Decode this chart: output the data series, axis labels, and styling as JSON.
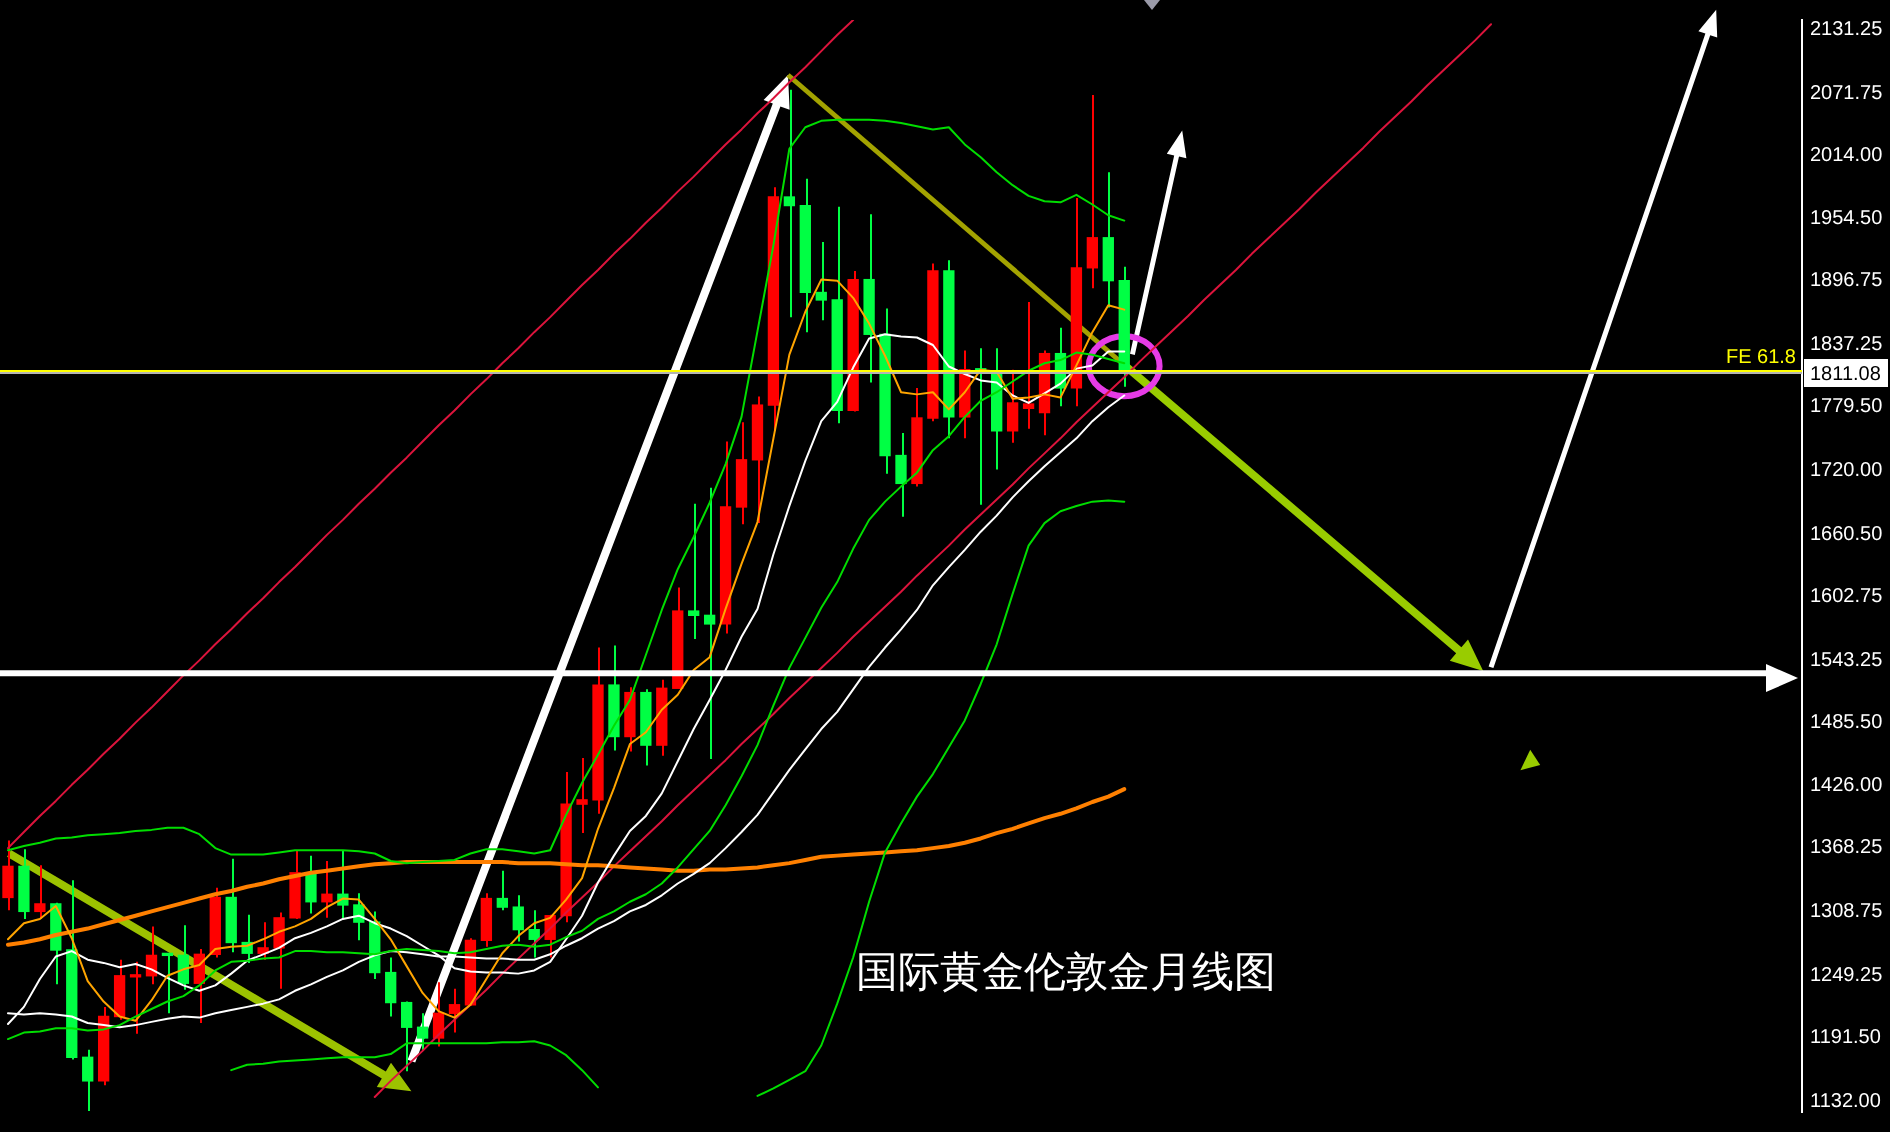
{
  "chart_data": {
    "type": "candlestick",
    "title": "国际黄金伦敦金月线图",
    "categories": [
      null,
      null,
      null,
      null,
      null,
      null,
      null,
      null,
      null,
      null,
      null,
      null,
      null,
      null,
      null,
      null,
      null,
      null,
      null,
      null,
      null,
      null,
      null,
      null,
      null,
      null,
      null,
      null,
      null,
      null,
      null,
      null,
      null,
      null,
      null,
      null,
      null,
      null,
      null,
      null,
      null,
      null,
      null,
      null,
      null,
      null,
      null,
      null,
      null,
      null,
      null,
      null,
      null,
      null,
      null,
      null,
      null,
      null,
      null,
      null,
      null,
      null,
      null,
      null,
      null,
      null,
      null,
      null,
      null,
      null,
      null,
      null,
      null,
      null,
      null,
      null,
      null,
      null,
      null,
      null,
      null,
      null,
      null,
      null,
      null,
      null,
      null,
      null,
      null,
      null,
      null,
      null,
      null,
      null,
      null,
      null,
      null,
      null,
      null,
      null,
      null,
      null,
      null,
      null,
      null,
      null,
      null,
      null,
      null,
      null,
      null,
      null,
      null
    ],
    "ohlc": [
      [
        1322,
        1375,
        1310,
        1351
      ],
      [
        1351,
        1367,
        1302,
        1309
      ],
      [
        1309,
        1352,
        1302,
        1316
      ],
      [
        1316,
        1317,
        1241,
        1273
      ],
      [
        1273,
        1338,
        1171,
        1173
      ],
      [
        1173,
        1180,
        1123,
        1151
      ],
      [
        1151,
        1220,
        1147,
        1211
      ],
      [
        1211,
        1264,
        1208,
        1249
      ],
      [
        1248,
        1262,
        1195,
        1249
      ],
      [
        1249,
        1295,
        1241,
        1268
      ],
      [
        1269,
        1270,
        1214,
        1268
      ],
      [
        1268,
        1296,
        1236,
        1242
      ],
      [
        1242,
        1274,
        1205,
        1269
      ],
      [
        1269,
        1331,
        1266,
        1322
      ],
      [
        1322,
        1358,
        1271,
        1280
      ],
      [
        1280,
        1306,
        1261,
        1270
      ],
      [
        1270,
        1299,
        1264,
        1275
      ],
      [
        1275,
        1308,
        1237,
        1303
      ],
      [
        1303,
        1366,
        1302,
        1345
      ],
      [
        1345,
        1361,
        1307,
        1318
      ],
      [
        1318,
        1356,
        1303,
        1325
      ],
      [
        1325,
        1366,
        1302,
        1315
      ],
      [
        1315,
        1326,
        1282,
        1299
      ],
      [
        1299,
        1309,
        1246,
        1252
      ],
      [
        1252,
        1266,
        1211,
        1224
      ],
      [
        1224,
        1225,
        1160,
        1201
      ],
      [
        1201,
        1214,
        1180,
        1191
      ],
      [
        1191,
        1243,
        1183,
        1214
      ],
      [
        1214,
        1237,
        1196,
        1222
      ],
      [
        1222,
        1284,
        1221,
        1282
      ],
      [
        1282,
        1326,
        1276,
        1321
      ],
      [
        1321,
        1347,
        1310,
        1313
      ],
      [
        1313,
        1324,
        1281,
        1292
      ],
      [
        1292,
        1310,
        1266,
        1283
      ],
      [
        1283,
        1306,
        1266,
        1305
      ],
      [
        1305,
        1439,
        1299,
        1409
      ],
      [
        1409,
        1452,
        1382,
        1413
      ],
      [
        1413,
        1555,
        1400,
        1520
      ],
      [
        1520,
        1557,
        1459,
        1472
      ],
      [
        1472,
        1518,
        1458,
        1513
      ],
      [
        1513,
        1516,
        1445,
        1464
      ],
      [
        1464,
        1525,
        1454,
        1517
      ],
      [
        1517,
        1611,
        1517,
        1589
      ],
      [
        1589,
        1689,
        1563,
        1585
      ],
      [
        1585,
        1704,
        1451,
        1577
      ],
      [
        1577,
        1747,
        1568,
        1686
      ],
      [
        1686,
        1765,
        1670,
        1730
      ],
      [
        1730,
        1789,
        1671,
        1781
      ],
      [
        1781,
        1984,
        1757,
        1975
      ],
      [
        1975,
        2075,
        1863,
        1967
      ],
      [
        1967,
        1992,
        1849,
        1886
      ],
      [
        1886,
        1933,
        1860,
        1879
      ],
      [
        1879,
        1966,
        1764,
        1776
      ],
      [
        1776,
        1906,
        1775,
        1898
      ],
      [
        1898,
        1959,
        1802,
        1847
      ],
      [
        1847,
        1871,
        1717,
        1734
      ],
      [
        1734,
        1755,
        1677,
        1708
      ],
      [
        1708,
        1797,
        1705,
        1769
      ],
      [
        1769,
        1913,
        1766,
        1906
      ],
      [
        1906,
        1916,
        1750,
        1770
      ],
      [
        1770,
        1832,
        1750,
        1814
      ],
      [
        1814,
        1834,
        1688,
        1813
      ],
      [
        1813,
        1834,
        1721,
        1757
      ],
      [
        1757,
        1814,
        1746,
        1783
      ],
      [
        1778,
        1877,
        1759,
        1782
      ],
      [
        1774,
        1832,
        1753,
        1829
      ],
      [
        1829,
        1853,
        1780,
        1797
      ],
      [
        1797,
        1974,
        1780,
        1909
      ],
      [
        1909,
        2070,
        1890,
        1937
      ],
      [
        1937,
        1998,
        1872,
        1897
      ],
      [
        1897,
        1910,
        1798,
        1811
      ],
      null,
      null,
      null,
      null,
      null,
      null,
      null,
      null,
      null,
      null,
      null,
      null,
      null,
      null,
      null,
      null,
      null,
      null,
      null,
      null,
      null,
      null,
      null,
      null,
      null,
      null,
      null,
      null,
      null,
      null,
      null,
      null,
      null,
      null,
      null,
      null,
      null,
      null,
      null,
      null,
      null,
      null
    ],
    "colors": [
      "#ff0000",
      "#00ff44",
      "#ff0000",
      "#00ff44",
      "#00ff44",
      "#00ff44",
      "#ff0000",
      "#ff0000",
      "#ff0000",
      "#ff0000",
      "#00ff44",
      "#00ff44",
      "#ff0000",
      "#ff0000",
      "#00ff44",
      "#00ff44",
      "#ff0000",
      "#ff0000",
      "#ff0000",
      "#00ff44",
      "#ff0000",
      "#00ff44",
      "#00ff44",
      "#00ff44",
      "#00ff44",
      "#00ff44",
      "#00ff44",
      "#ff0000",
      "#ff0000",
      "#ff0000",
      "#ff0000",
      "#00ff44",
      "#00ff44",
      "#00ff44",
      "#ff0000",
      "#ff0000",
      "#ff0000",
      "#ff0000",
      "#00ff44",
      "#ff0000",
      "#00ff44",
      "#ff0000",
      "#ff0000",
      "#00ff44",
      "#00ff44",
      "#ff0000",
      "#ff0000",
      "#ff0000",
      "#ff0000",
      "#00ff44",
      "#00ff44",
      "#00ff44",
      "#00ff44",
      "#ff0000",
      "#00ff44",
      "#00ff44",
      "#00ff44",
      "#ff0000",
      "#ff0000",
      "#00ff44",
      "#ff0000",
      "#00ff44",
      "#00ff44",
      "#ff0000",
      "#ff0000",
      "#ff0000",
      "#00ff44",
      "#ff0000",
      "#ff0000",
      "#00ff44",
      "#00ff44",
      null,
      null,
      null,
      null,
      null,
      null,
      null,
      null,
      null,
      null,
      null,
      null,
      null,
      null,
      null,
      null,
      null,
      null,
      null,
      null,
      null,
      null,
      null,
      null,
      null,
      null,
      null,
      null,
      null,
      null,
      null,
      null,
      null,
      null,
      null,
      null,
      null,
      null,
      null,
      null,
      null,
      null
    ],
    "series": [
      {
        "type": "line",
        "color": "#00dd00",
        "values": [
          1366,
          1370,
          1373,
          1377,
          1378,
          1380,
          1381,
          1382,
          1384,
          1385,
          1387,
          1387,
          1381,
          1368,
          1362,
          1362,
          1362,
          1364,
          1366,
          1366,
          1366,
          1366,
          1365,
          1363,
          1356,
          1354,
          1355,
          1356,
          1357,
          1363,
          1367,
          1367,
          1365,
          1363,
          1366,
          1399,
          1429,
          1455,
          1482,
          1506,
          1548,
          1590,
          1628,
          1658,
          1690,
          1726,
          1770,
          1850,
          1930,
          2020,
          2040,
          2046,
          2047,
          2047,
          2047,
          2046,
          2044,
          2041,
          2038,
          2040,
          2024,
          2012,
          1998,
          1986,
          1976,
          1971,
          1970,
          1977,
          1968,
          1958,
          1953,
          null,
          null,
          null,
          null,
          null,
          null,
          null,
          null,
          null,
          null,
          null,
          null,
          null,
          null,
          null,
          null,
          null,
          null,
          null,
          null,
          null,
          null,
          null,
          null,
          null,
          null,
          null,
          null,
          null,
          null,
          null,
          null,
          null,
          null,
          null,
          null,
          null,
          null,
          null,
          null,
          null,
          null
        ]
      },
      {
        "type": "line",
        "color": "#00dd00",
        "values": [
          1190,
          1196,
          1197,
          1200,
          1200,
          1198,
          1199,
          1203,
          1211,
          1218,
          1225,
          1230,
          1240,
          1254,
          1262,
          1263,
          1265,
          1266,
          1272,
          1272,
          1271,
          1271,
          1270,
          1269,
          1272,
          1274,
          1273,
          1272,
          1270,
          1271,
          1274,
          1277,
          1278,
          1276,
          1278,
          1285,
          1291,
          1302,
          1309,
          1318,
          1325,
          1335,
          1350,
          1367,
          1384,
          1408,
          1435,
          1464,
          1501,
          1536,
          1564,
          1592,
          1616,
          1647,
          1674,
          1691,
          1705,
          1718,
          1739,
          1752,
          1770,
          1785,
          1793,
          1803,
          1813,
          1820,
          1823,
          1830,
          1828,
          1824,
          1820,
          null,
          null,
          null,
          null,
          null,
          null,
          null,
          null,
          null,
          null,
          null,
          null,
          null,
          null,
          null,
          null,
          null,
          null,
          null,
          null,
          null,
          null,
          null,
          null,
          null,
          null,
          null,
          null,
          null,
          null,
          null,
          null,
          null,
          null,
          null,
          null,
          null,
          null,
          null,
          null,
          null,
          null
        ]
      },
      {
        "type": "line",
        "color": "#00dd00",
        "values": [
          null,
          null,
          null,
          null,
          null,
          null,
          null,
          null,
          null,
          null,
          null,
          null,
          null,
          null,
          1161,
          1166,
          1167,
          1169,
          1170,
          1171,
          1172,
          1173,
          1173,
          1173,
          1176,
          1186,
          1186,
          1186,
          1186,
          1186,
          1186,
          1187,
          1187,
          1188,
          1184,
          1175,
          1161,
          1145,
          null,
          null,
          null,
          null,
          null,
          null,
          null,
          null,
          null,
          1137,
          1144,
          1152,
          1160,
          1184,
          1223,
          1266,
          1318,
          1364,
          1391,
          1416,
          1437,
          1462,
          1487,
          1521,
          1558,
          1605,
          1650,
          1671,
          1682,
          1687,
          1691,
          1692,
          1691,
          null,
          null,
          null,
          null,
          null,
          null,
          null,
          null,
          null,
          null,
          null,
          null,
          null,
          null,
          null,
          null,
          null,
          null,
          null,
          null,
          null,
          null,
          null,
          null,
          null,
          null,
          null,
          null,
          null,
          null,
          null,
          null,
          null,
          null,
          null,
          null,
          null,
          null,
          null,
          null,
          null,
          null
        ]
      },
      {
        "type": "line",
        "color": "#ffa500",
        "values": [
          1283,
          1298,
          1302,
          1314,
          1284,
          1244,
          1225,
          1211,
          1207,
          1226,
          1249,
          1255,
          1259,
          1274,
          1276,
          1277,
          1283,
          1290,
          1295,
          1302,
          1313,
          1321,
          1320,
          1302,
          1283,
          1258,
          1233,
          1216,
          1210,
          1222,
          1246,
          1270,
          1286,
          1298,
          1303,
          1320,
          1340,
          1386,
          1424,
          1465,
          1476,
          1497,
          1511,
          1534,
          1546,
          1591,
          1633,
          1672,
          1750,
          1828,
          1868,
          1898,
          1897,
          1881,
          1857,
          1827,
          1793,
          1791,
          1793,
          1777,
          1793,
          1814,
          1812,
          1787,
          1788,
          1791,
          1788,
          1818,
          1849,
          1874,
          1870,
          null,
          null,
          null,
          null,
          null,
          null,
          null,
          null,
          null,
          null,
          null,
          null,
          null,
          null,
          null,
          null,
          null,
          null,
          null,
          null,
          null,
          null,
          null,
          null,
          null,
          null,
          null,
          null,
          null,
          null,
          null,
          null,
          null,
          null,
          null,
          null,
          null,
          null,
          null,
          null,
          null,
          null
        ]
      },
      {
        "type": "line",
        "color": "#ffffff",
        "values": [
          1204,
          1220,
          1246,
          1267,
          1272,
          1264,
          1261,
          1257,
          1260,
          1255,
          1247,
          1240,
          1235,
          1240,
          1251,
          1263,
          1269,
          1275,
          1284,
          1289,
          1295,
          1302,
          1305,
          1298,
          1293,
          1286,
          1277,
          1268,
          1256,
          1253,
          1252,
          1252,
          1251,
          1254,
          1262,
          1283,
          1305,
          1336,
          1361,
          1384,
          1398,
          1419,
          1449,
          1479,
          1506,
          1534,
          1565,
          1591,
          1642,
          1687,
          1729,
          1766,
          1784,
          1816,
          1843,
          1847,
          1845,
          1844,
          1837,
          1817,
          1810,
          1804,
          1802,
          1790,
          1783,
          1792,
          1801,
          1815,
          1818,
          1831,
          1831,
          null,
          null,
          null,
          null,
          null,
          null,
          null,
          null,
          null,
          null,
          null,
          null,
          null,
          null,
          null,
          null,
          null,
          null,
          null,
          null,
          null,
          null,
          null,
          null,
          null,
          null,
          null,
          null,
          null,
          null,
          null,
          null,
          null,
          null,
          null,
          null,
          null,
          null,
          null,
          null,
          null,
          null
        ]
      },
      {
        "type": "line",
        "color": "#ffffff",
        "values": [
          1214,
          1213,
          1214,
          1213,
          1211,
          1205,
          1203,
          1201,
          1203,
          1206,
          1209,
          1211,
          1210,
          1214,
          1217,
          1220,
          1223,
          1227,
          1235,
          1241,
          1248,
          1254,
          1262,
          1268,
          1272,
          1271,
          1269,
          1267,
          1267,
          1266,
          1265,
          1265,
          1264,
          1264,
          1269,
          1277,
          1284,
          1293,
          1300,
          1309,
          1315,
          1324,
          1335,
          1344,
          1354,
          1368,
          1383,
          1399,
          1420,
          1441,
          1460,
          1479,
          1495,
          1516,
          1537,
          1555,
          1572,
          1590,
          1613,
          1630,
          1646,
          1663,
          1678,
          1695,
          1710,
          1724,
          1737,
          1750,
          1766,
          1779,
          1790,
          null,
          null,
          null,
          null,
          null,
          null,
          null,
          null,
          null,
          null,
          null,
          null,
          null,
          null,
          null,
          null,
          null,
          null,
          null,
          null,
          null,
          null,
          null,
          null,
          null,
          null,
          null,
          null,
          null,
          null,
          null,
          null,
          null,
          null,
          null,
          null,
          null,
          null,
          null,
          null,
          null,
          null
        ]
      },
      {
        "type": "line",
        "color": "#ff8000",
        "values": [
          1278,
          1280,
          1283,
          1287,
          1290,
          1293,
          1297,
          1301,
          1305,
          1309,
          1313,
          1317,
          1321,
          1325,
          1328,
          1332,
          1335,
          1339,
          1342,
          1345,
          1347,
          1349,
          1351,
          1353,
          1354,
          1355,
          1355,
          1355,
          1355,
          1355,
          1355,
          1355,
          1354,
          1354,
          1354,
          1353,
          1352,
          1352,
          1351,
          1350,
          1349,
          1348,
          1347,
          1347,
          1348,
          1348,
          1349,
          1350,
          1352,
          1354,
          1357,
          1360,
          1361,
          1362,
          1363,
          1364,
          1365,
          1366,
          1368,
          1370,
          1373,
          1377,
          1382,
          1386,
          1391,
          1396,
          1400,
          1405,
          1411,
          1416,
          1423,
          null,
          null,
          null,
          null,
          null,
          null,
          null,
          null,
          null,
          null,
          null,
          null,
          null,
          null,
          null,
          null,
          null,
          null,
          null,
          null,
          null,
          null,
          null,
          null,
          null,
          null,
          null,
          null,
          null,
          null,
          null,
          null,
          null,
          null,
          null,
          null,
          null,
          null,
          null,
          null,
          null,
          null
        ]
      },
      {
        "type": "line",
        "color": "#dc143c",
        "values": [
          1368,
          1383,
          1398,
          1412,
          1427,
          1441,
          1456,
          1470,
          1485,
          1499,
          1514,
          1529,
          1543,
          1558,
          1572,
          1587,
          1601,
          1616,
          1630,
          1645,
          1660,
          1674,
          1689,
          1703,
          1718,
          1732,
          1747,
          1762,
          1776,
          1791,
          1805,
          1820,
          1834,
          1849,
          1863,
          1878,
          1893,
          1907,
          1922,
          1936,
          1951,
          1965,
          1980,
          1994,
          2009,
          2024,
          2038,
          2053,
          2067,
          2082,
          2096,
          2111,
          2126,
          2140,
          null,
          null,
          null,
          null,
          null,
          null,
          null,
          null,
          null,
          null,
          null,
          null,
          null,
          null,
          null,
          null,
          null,
          null,
          null,
          null,
          null,
          null,
          null,
          null,
          null,
          null,
          null,
          null,
          null,
          null,
          null,
          null,
          null,
          null,
          null,
          null,
          null,
          null,
          null,
          null,
          null,
          null,
          null,
          null,
          null,
          null,
          null,
          null,
          null,
          null,
          null,
          null,
          null,
          null,
          null,
          null,
          null,
          null,
          null
        ]
      },
      {
        "type": "line",
        "color": "#dc143c",
        "values": [
          null,
          null,
          null,
          null,
          null,
          null,
          null,
          null,
          null,
          null,
          null,
          null,
          null,
          null,
          null,
          null,
          null,
          null,
          null,
          null,
          null,
          null,
          null,
          1136,
          1151,
          1165,
          1179,
          1194,
          1208,
          1222,
          1236,
          1251,
          1265,
          1279,
          1293,
          1308,
          1322,
          1336,
          1351,
          1365,
          1379,
          1393,
          1408,
          1422,
          1436,
          1450,
          1465,
          1479,
          1493,
          1508,
          1522,
          1536,
          1550,
          1565,
          1579,
          1593,
          1607,
          1622,
          1636,
          1650,
          1665,
          1679,
          1693,
          1707,
          1722,
          1736,
          1750,
          1765,
          1779,
          1793,
          1807,
          1822,
          1836,
          1850,
          1864,
          1879,
          1893,
          1907,
          1922,
          1936,
          1950,
          1964,
          1979,
          1993,
          2007,
          2021,
          2036,
          2050,
          2064,
          2079,
          2093,
          2107,
          2121,
          2136,
          null,
          null,
          null,
          null,
          null,
          null,
          null,
          null,
          null,
          null,
          null,
          null,
          null,
          null,
          null,
          null,
          null,
          null,
          null
        ]
      }
    ],
    "ylim": [
      1122,
      2140
    ],
    "yticks": [
      2131.25,
      2071.75,
      {
        "value": 2014,
        "label": "2014.00"
      },
      {
        "value": 1954.5,
        "label": "1954.50"
      },
      1896.75,
      1837.25,
      {
        "value": 1779.5,
        "label": "1779.50"
      },
      {
        "value": 1720,
        "label": "1720.00"
      },
      {
        "value": 1660.5,
        "label": "1660.50"
      },
      1602.75,
      1543.25,
      {
        "value": 1485.5,
        "label": "1485.50"
      },
      {
        "value": 1426,
        "label": "1426.00"
      },
      1368.25,
      1308.75,
      1249.25,
      {
        "value": 1191.5,
        "label": "1191.50"
      },
      {
        "value": 1132,
        "label": "1132.00"
      }
    ],
    "tick_labels": "y",
    "ref_lines": [
      {
        "axis": "y",
        "value": 1814,
        "label": "FE 61.8",
        "color": "#ffff00"
      },
      {
        "axis": "y",
        "value": 1811.08,
        "label": "1811.08",
        "color": "#b4b4b4"
      },
      {
        "axis": "y",
        "value": 1531,
        "color": "#ffffff"
      }
    ]
  }
}
